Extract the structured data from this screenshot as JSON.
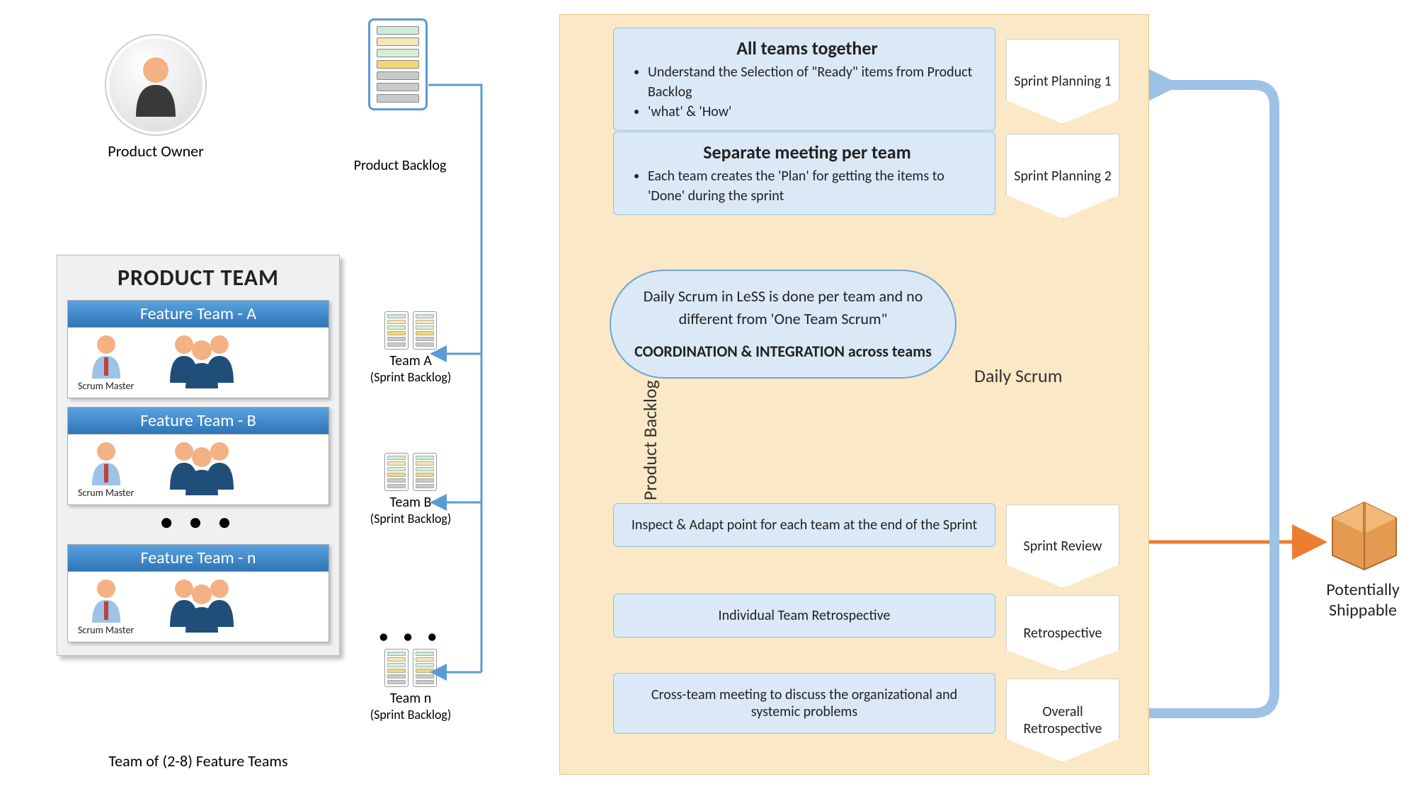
{
  "product_owner": {
    "label": "Product Owner"
  },
  "product_backlog": {
    "label": "Product Backlog",
    "row_colors": [
      "#cdebd6",
      "#f5e6b6",
      "#d7eed3",
      "#f3d96a",
      "#c9c9c9",
      "#c9c9c9",
      "#c9c9c9"
    ]
  },
  "team_panel": {
    "title": "PRODUCT TEAM",
    "teams": [
      {
        "header": "Feature Team - A",
        "sprint_label": "Team A",
        "sprint_sub": "(Sprint Backlog)"
      },
      {
        "header": "Feature Team - B",
        "sprint_label": "Team B",
        "sprint_sub": "(Sprint Backlog)"
      },
      {
        "header": "Feature Team - n",
        "sprint_label": "Team n",
        "sprint_sub": "(Sprint Backlog)"
      }
    ],
    "scrum_master": "Scrum Master",
    "footer": "Team of (2-8) Feature Teams",
    "mini_row_colors": [
      "#cdebd6",
      "#f5e6b6",
      "#d7eed3",
      "#f3d96a",
      "#c9c9c9",
      "#c9c9c9"
    ]
  },
  "refinement": {
    "side_label": "Product Backlog Refinement",
    "box1": {
      "title": "All teams together",
      "b1": "Understand the Selection of \"Ready\" items from Product Backlog",
      "b2": "'what' & 'How'"
    },
    "box2": {
      "title": "Separate meeting per team",
      "b1": "Each team creates the 'Plan' for getting the items to 'Done' during the sprint"
    },
    "daily": {
      "line1": "Daily Scrum in LeSS is done per team and no different from 'One Team Scrum\"",
      "coord": "COORDINATION & INTEGRATION across teams",
      "label": "Daily Scrum"
    },
    "box3": "Inspect & Adapt point for each team at the end of the Sprint",
    "box4": "Individual Team Retrospective",
    "box5": "Cross-team meeting to discuss the organizational and systemic problems",
    "chevrons": [
      "Sprint Planning 1",
      "Sprint Planning 2",
      "Sprint Review",
      "Retrospective",
      "Overall Retrospective"
    ]
  },
  "shippable": {
    "line1": "Potentially",
    "line2": "Shippable"
  },
  "colors": {
    "blue_header": "#2e75b6",
    "light_blue": "#dbe9f7",
    "backlog_border": "#5b9bd5",
    "refine_bg": "#fbe8c6",
    "orange_arrow": "#ed7d31",
    "feedback_arrow": "#9cc3e5",
    "person_head": "#f4b183",
    "person_body_dark": "#1f4e79",
    "person_body_light": "#9dc3e6"
  }
}
